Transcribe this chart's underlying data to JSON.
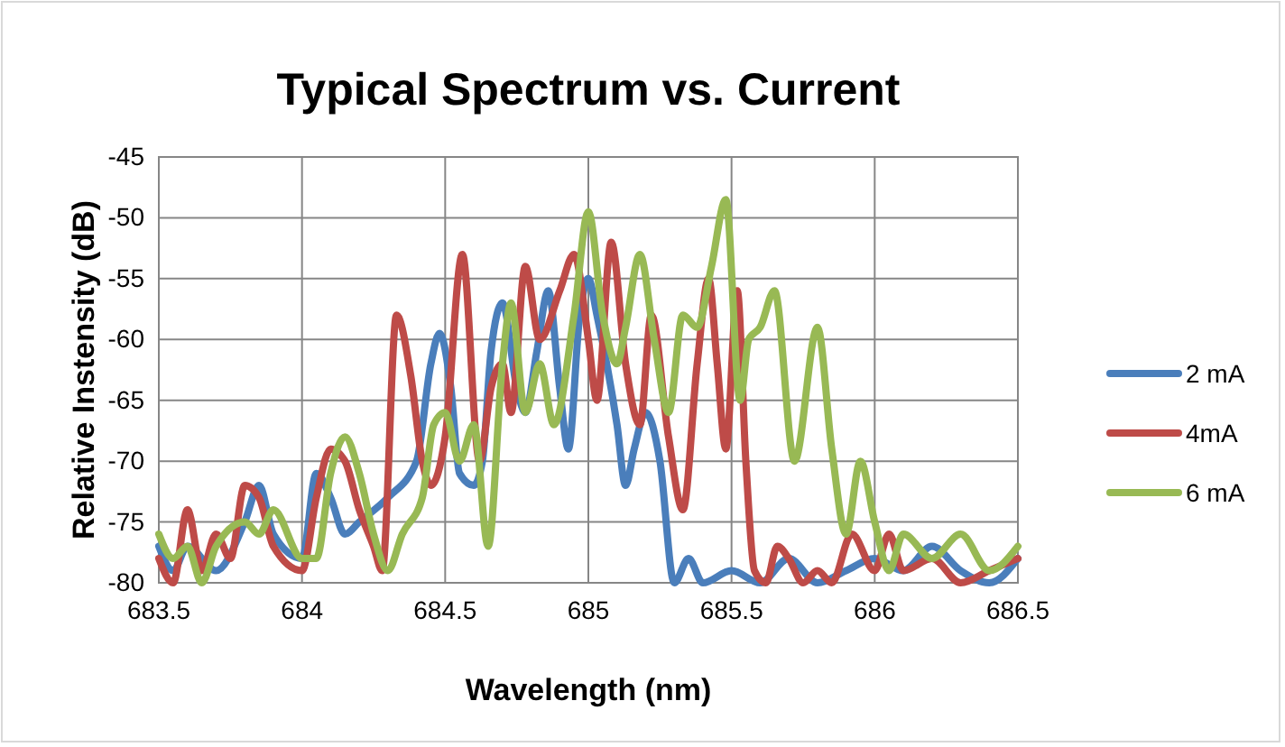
{
  "chart_data": {
    "type": "line",
    "title": "Typical Spectrum vs. Current",
    "xlabel": "Wavelength (nm)",
    "ylabel": "Relative Instensity (dB)",
    "xlim": [
      683.5,
      686.5
    ],
    "xticks": [
      683.5,
      684,
      684.5,
      685,
      685.5,
      686,
      686.5
    ],
    "ylim": [
      -80,
      -45
    ],
    "yticks": [
      -80,
      -75,
      -70,
      -65,
      -60,
      -55,
      -50,
      -45
    ],
    "grid": true,
    "legend": "right",
    "line_style": "solid",
    "marker": "none",
    "series": [
      {
        "name": "2 mA",
        "color": "#4a7ebb",
        "x": [
          683.5,
          683.55,
          683.6,
          683.7,
          683.8,
          683.85,
          683.9,
          684.0,
          684.05,
          684.1,
          684.15,
          684.2,
          684.3,
          684.4,
          684.45,
          684.48,
          684.52,
          684.55,
          684.6,
          684.63,
          684.66,
          684.7,
          684.75,
          684.78,
          684.82,
          684.86,
          684.9,
          684.93,
          684.97,
          685.0,
          685.03,
          685.1,
          685.13,
          685.16,
          685.2,
          685.25,
          685.3,
          685.35,
          685.4,
          685.5,
          685.6,
          685.7,
          685.8,
          685.9,
          686.0,
          686.1,
          686.2,
          686.3,
          686.4,
          686.5
        ],
        "values": [
          -77,
          -79,
          -77,
          -79,
          -75,
          -72,
          -76,
          -78,
          -71,
          -73,
          -76,
          -75,
          -73,
          -70,
          -62,
          -59.5,
          -64,
          -71,
          -72,
          -70,
          -61,
          -57,
          -64,
          -66,
          -61,
          -56,
          -64,
          -69,
          -58,
          -55,
          -58,
          -67,
          -72,
          -69,
          -66,
          -70,
          -80,
          -78,
          -80,
          -79,
          -80,
          -78,
          -80,
          -79,
          -78,
          -79,
          -77,
          -79,
          -80,
          -78
        ]
      },
      {
        "name": "4mA",
        "color": "#be4b48",
        "x": [
          683.5,
          683.55,
          683.6,
          683.65,
          683.7,
          683.75,
          683.8,
          683.85,
          683.9,
          684.0,
          684.05,
          684.1,
          684.15,
          684.2,
          684.25,
          684.28,
          684.33,
          684.38,
          684.42,
          684.45,
          684.5,
          684.56,
          684.62,
          684.66,
          684.7,
          684.73,
          684.78,
          684.83,
          684.9,
          684.95,
          685.0,
          685.03,
          685.08,
          685.13,
          685.18,
          685.22,
          685.28,
          685.33,
          685.38,
          685.42,
          685.45,
          685.48,
          685.52,
          685.55,
          685.58,
          685.62,
          685.66,
          685.7,
          685.75,
          685.8,
          685.85,
          685.92,
          686.0,
          686.05,
          686.1,
          686.2,
          686.3,
          686.4,
          686.5
        ],
        "values": [
          -78,
          -80,
          -74,
          -79,
          -76,
          -78,
          -72,
          -73,
          -77,
          -79,
          -73,
          -69,
          -70,
          -74,
          -77,
          -79,
          -58,
          -63,
          -70,
          -72,
          -68,
          -53,
          -70,
          -64,
          -62,
          -66,
          -54,
          -60,
          -56,
          -53,
          -60,
          -65,
          -52,
          -62,
          -67,
          -58,
          -68,
          -74,
          -62,
          -55,
          -62,
          -69,
          -56,
          -70,
          -79,
          -80,
          -77,
          -78,
          -80,
          -79,
          -80,
          -76,
          -79,
          -76,
          -79,
          -78,
          -80,
          -79,
          -78
        ]
      },
      {
        "name": "6 mA",
        "color": "#98b954",
        "x": [
          683.5,
          683.55,
          683.6,
          683.65,
          683.7,
          683.8,
          683.85,
          683.9,
          684.0,
          684.05,
          684.1,
          684.15,
          684.2,
          684.25,
          684.3,
          684.35,
          684.42,
          684.46,
          684.5,
          684.55,
          684.6,
          684.65,
          684.7,
          684.73,
          684.78,
          684.83,
          684.88,
          684.95,
          685.0,
          685.05,
          685.1,
          685.13,
          685.18,
          685.23,
          685.28,
          685.33,
          685.38,
          685.43,
          685.48,
          685.53,
          685.56,
          685.6,
          685.65,
          685.72,
          685.8,
          685.85,
          685.9,
          685.95,
          686.0,
          686.05,
          686.1,
          686.2,
          686.3,
          686.4,
          686.5
        ],
        "values": [
          -76,
          -78,
          -77,
          -80,
          -77,
          -75,
          -76,
          -74,
          -78,
          -78,
          -71,
          -68,
          -71,
          -76,
          -79,
          -76,
          -73,
          -67,
          -66,
          -70,
          -67,
          -77,
          -62,
          -57,
          -66,
          -62,
          -67,
          -58,
          -49.5,
          -58,
          -62,
          -59,
          -53,
          -60,
          -66,
          -58,
          -59,
          -54,
          -48.5,
          -65,
          -60,
          -59,
          -56,
          -70,
          -59,
          -69,
          -76,
          -70,
          -75,
          -79,
          -76,
          -78,
          -76,
          -79,
          -77
        ]
      }
    ]
  }
}
